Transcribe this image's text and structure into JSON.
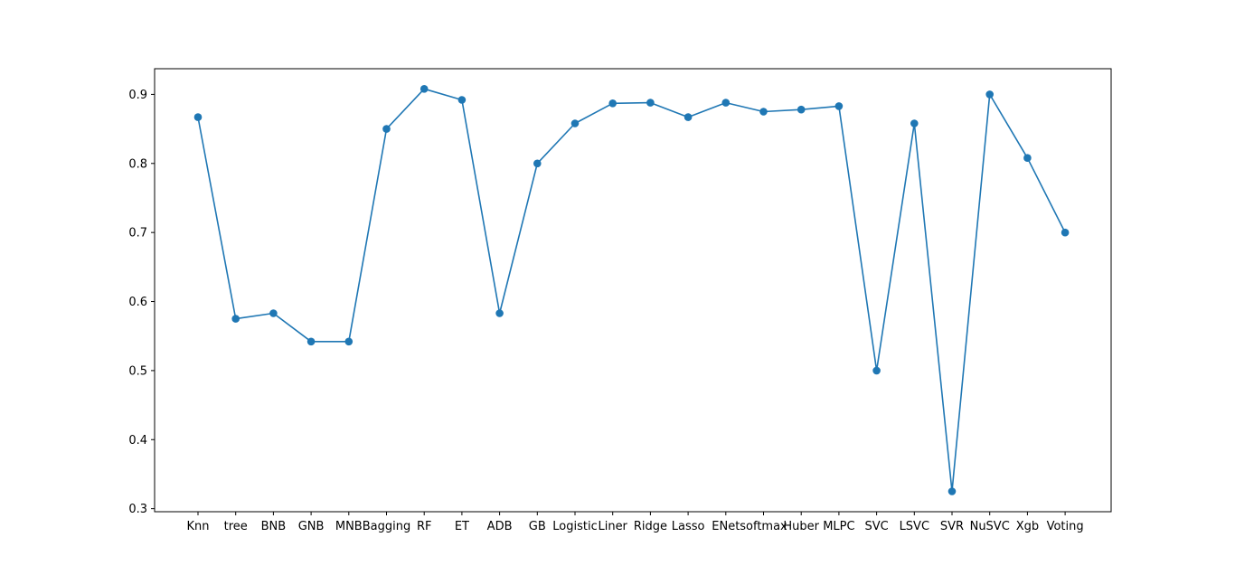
{
  "chart_data": {
    "type": "line",
    "title": "",
    "xlabel": "",
    "ylabel": "",
    "categories": [
      "Knn",
      "tree",
      "BNB",
      "GNB",
      "MNB",
      "Bagging",
      "RF",
      "ET",
      "ADB",
      "GB",
      "Logistic",
      "Liner",
      "Ridge",
      "Lasso",
      "ENet",
      "softmax",
      "Huber",
      "MLPC",
      "SVC",
      "LSVC",
      "SVR",
      "NuSVC",
      "Xgb",
      "Voting"
    ],
    "series": [
      {
        "values": [
          0.867,
          0.575,
          0.583,
          0.542,
          0.542,
          0.85,
          0.908,
          0.892,
          0.583,
          0.8,
          0.858,
          0.887,
          0.888,
          0.867,
          0.888,
          0.875,
          0.878,
          0.883,
          0.5,
          0.858,
          0.325,
          0.9,
          0.808,
          0.7
        ],
        "color": "#1f77b4",
        "marker": "circle"
      }
    ],
    "yticks": [
      0.3,
      0.4,
      0.5,
      0.6,
      0.7,
      0.8,
      0.9
    ],
    "ylim": [
      0.2956,
      0.9372
    ],
    "grid": false,
    "legend": "none"
  }
}
